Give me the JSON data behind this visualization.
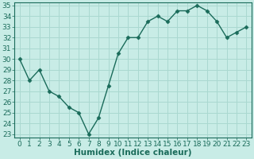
{
  "x": [
    0,
    1,
    2,
    3,
    4,
    5,
    6,
    7,
    8,
    9,
    10,
    11,
    12,
    13,
    14,
    15,
    16,
    17,
    18,
    19,
    20,
    21,
    22,
    23
  ],
  "y": [
    30,
    28,
    29,
    27,
    26.5,
    25.5,
    25,
    23,
    24.5,
    27.5,
    30.5,
    32,
    32,
    33.5,
    34,
    33.5,
    34.5,
    34.5,
    35,
    34.5,
    33.5,
    32,
    32.5,
    33
  ],
  "line_color": "#1a6b5a",
  "marker": "D",
  "marker_size": 2.5,
  "bg_color": "#c8ece6",
  "grid_color": "#aad8d0",
  "xlabel": "Humidex (Indice chaleur)",
  "ylim": [
    23,
    35
  ],
  "xlim": [
    -0.5,
    23.5
  ],
  "yticks": [
    23,
    24,
    25,
    26,
    27,
    28,
    29,
    30,
    31,
    32,
    33,
    34,
    35
  ],
  "xticks": [
    0,
    1,
    2,
    3,
    4,
    5,
    6,
    7,
    8,
    9,
    10,
    11,
    12,
    13,
    14,
    15,
    16,
    17,
    18,
    19,
    20,
    21,
    22,
    23
  ],
  "xlabel_fontsize": 7.5,
  "tick_fontsize": 6.5,
  "linewidth": 1.0
}
